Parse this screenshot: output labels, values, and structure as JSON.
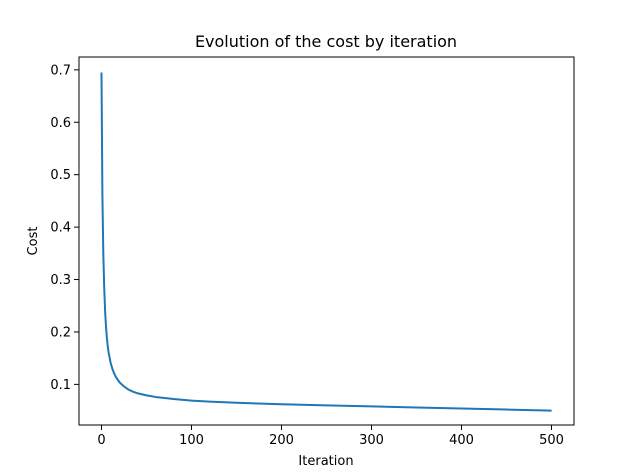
{
  "chart_data": {
    "type": "line",
    "title": "Evolution of the cost by iteration",
    "xlabel": "Iteration",
    "ylabel": "Cost",
    "xlim": [
      -25,
      525
    ],
    "ylim": [
      0.0225,
      0.7245
    ],
    "xticks": [
      0,
      100,
      200,
      300,
      400,
      500
    ],
    "xtick_labels": [
      "0",
      "100",
      "200",
      "300",
      "400",
      "500"
    ],
    "yticks": [
      0.1,
      0.2,
      0.3,
      0.4,
      0.5,
      0.6,
      0.7
    ],
    "ytick_labels": [
      "0.1",
      "0.2",
      "0.3",
      "0.4",
      "0.5",
      "0.6",
      "0.7"
    ],
    "grid": false,
    "legend": "none",
    "series": [
      {
        "color": "#1f77b4",
        "x": [
          0,
          1,
          2,
          3,
          4,
          5,
          6,
          7,
          8,
          10,
          12,
          14,
          16,
          18,
          20,
          25,
          30,
          35,
          40,
          50,
          60,
          70,
          80,
          100,
          120,
          150,
          200,
          250,
          300,
          350,
          400,
          450,
          499
        ],
        "y": [
          0.693,
          0.46,
          0.35,
          0.285,
          0.24,
          0.21,
          0.188,
          0.172,
          0.16,
          0.142,
          0.13,
          0.121,
          0.114,
          0.109,
          0.104,
          0.096,
          0.09,
          0.086,
          0.083,
          0.079,
          0.076,
          0.074,
          0.072,
          0.069,
          0.067,
          0.065,
          0.062,
          0.06,
          0.058,
          0.056,
          0.054,
          0.052,
          0.05
        ]
      }
    ]
  }
}
